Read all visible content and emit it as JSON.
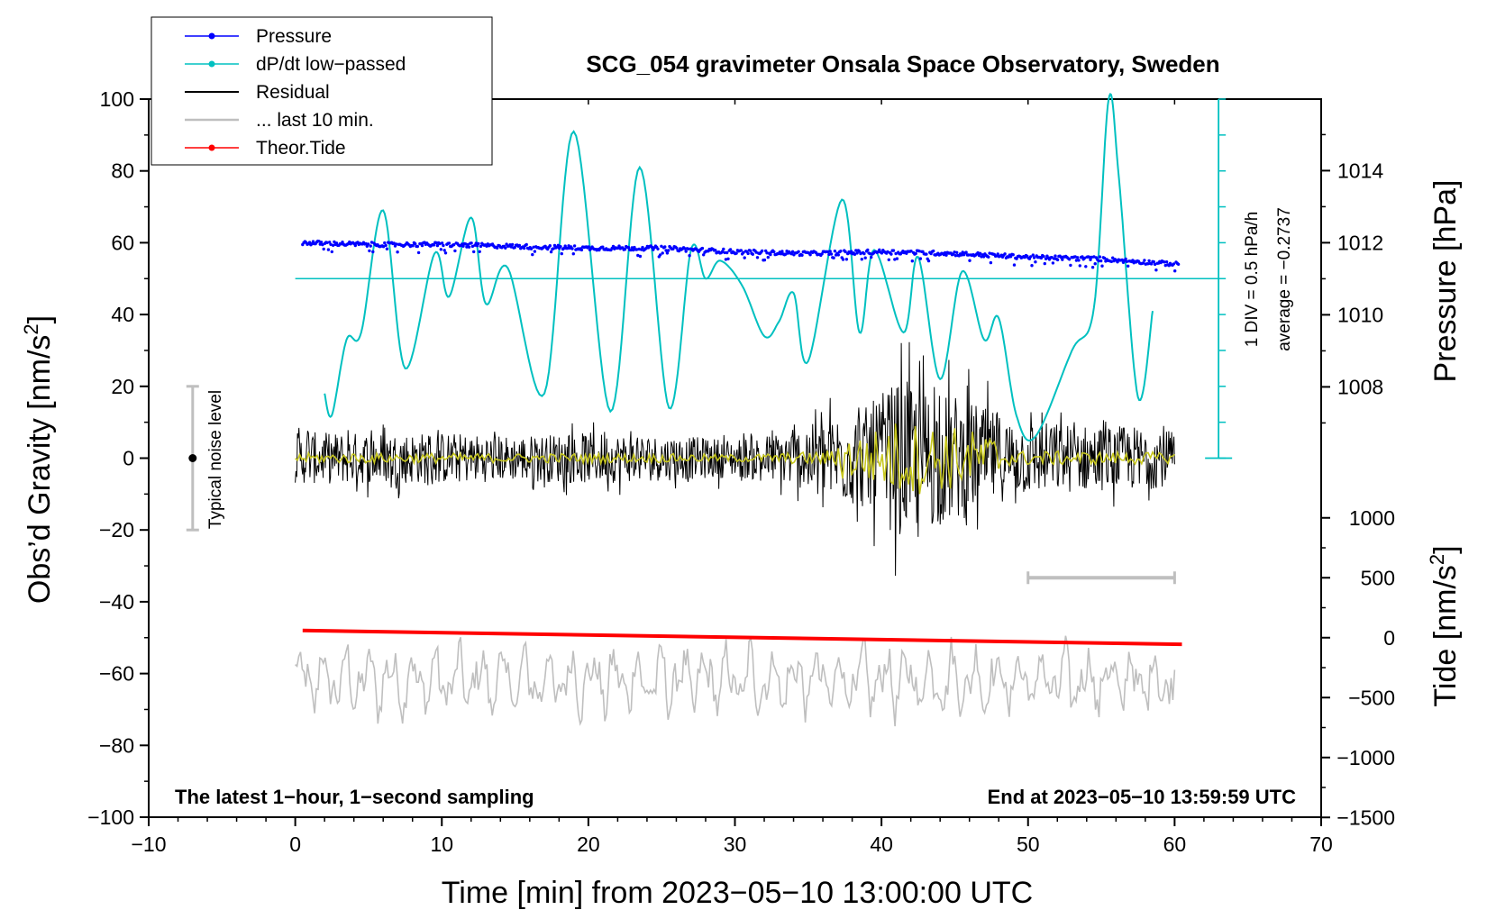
{
  "chart_data": {
    "type": "line",
    "title": "SCG_054 gravimeter Onsala Space Observatory, Sweden",
    "xlabel": "Time [min] from 2023−05−10 13:00:00 UTC",
    "ylabel": "Obs’d Gravity [nm/s",
    "ylabel_sup": "2",
    "ylabel_close": "]",
    "y2label": "Pressure [hPa]",
    "y3label": "Tide [nm/s",
    "y3label_sup": "2",
    "y3label_close": "]",
    "xlim": [
      -10,
      70
    ],
    "ylim": [
      -100,
      100
    ],
    "pressure_lim": [
      1006,
      1016
    ],
    "tide_lim": [
      -1500,
      1000
    ],
    "x_ticks": [
      "−10",
      "0",
      "10",
      "20",
      "30",
      "40",
      "50",
      "60",
      "70"
    ],
    "y_ticks": [
      "−100",
      "−80",
      "−60",
      "−40",
      "−20",
      "0",
      "20",
      "40",
      "60",
      "80",
      "100"
    ],
    "pressure_ticks": [
      "1008",
      "1010",
      "1012",
      "1014"
    ],
    "tide_ticks": [
      "−1500",
      "−1000",
      "−500",
      "0",
      "500",
      "1000"
    ],
    "legend": [
      {
        "label": "Pressure",
        "color": "#0000ff",
        "marker": true
      },
      {
        "label": "dP/dt low−passed",
        "color": "#00c0c0",
        "marker": true
      },
      {
        "label": "Residual",
        "color": "#000000",
        "marker": false
      },
      {
        "label": "... last 10 min.",
        "color": "#bfbfbf",
        "marker": false
      },
      {
        "label": "Theor.Tide",
        "color": "#ff0000",
        "marker": true
      }
    ],
    "annotations": {
      "bottom_left": "The latest 1−hour, 1−second sampling",
      "bottom_right": "End at 2023−05−10 13:59:59 UTC",
      "noise": "Typical noise level",
      "dpdt_scale": "1 DIV = 0.5 hPa/h",
      "dpdt_average": "average = −0.2737"
    },
    "noise_bar": {
      "x": -7,
      "center": 0,
      "low": -20,
      "high": 20
    },
    "last10_bar": {
      "x_start": 50,
      "x_end": 60,
      "tide": 500
    },
    "dpdt_baseline_gravity": 50,
    "series": [
      {
        "name": "Pressure",
        "unit": "hPa",
        "color": "#0000ff",
        "x": [
          0.5,
          5,
          10,
          15,
          20,
          25,
          30,
          35,
          40,
          45,
          50,
          55,
          60.3
        ],
        "values": [
          1012.0,
          1011.95,
          1011.95,
          1011.9,
          1011.85,
          1011.85,
          1011.75,
          1011.7,
          1011.75,
          1011.7,
          1011.6,
          1011.55,
          1011.4
        ]
      },
      {
        "name": "dP/dt low−passed",
        "unit": "nm/s2 (plotted)",
        "color": "#00c0c0",
        "x": [
          2,
          2.5,
          3.5,
          4.5,
          6,
          7.5,
          9.5,
          10.5,
          12,
          13,
          14.5,
          17,
          19,
          21.5,
          23.5,
          25.5,
          27,
          28,
          29,
          30.5,
          32,
          33,
          34,
          35,
          37.3,
          38.5,
          39.5,
          41.5,
          42.5,
          44,
          45.5,
          47,
          48,
          49.2,
          50.5,
          53,
          54.5,
          55.5,
          56.2,
          57.5,
          58.5
        ],
        "values": [
          18,
          12,
          33,
          35,
          69,
          25,
          57,
          45,
          67,
          43,
          53,
          18,
          91,
          13,
          81,
          14,
          58,
          50,
          55,
          48,
          34,
          38,
          46,
          27,
          72,
          35,
          58,
          35,
          56,
          22,
          52,
          33,
          39,
          12,
          6,
          30,
          42,
          100,
          78,
          17,
          41
        ]
      },
      {
        "name": "Residual",
        "unit": "nm/s2",
        "color": "#000000",
        "envelope_x": [
          0,
          5,
          10,
          15,
          20,
          25,
          30,
          33,
          35,
          37,
          39,
          41,
          43,
          45,
          47,
          49,
          52,
          55,
          58,
          60
        ],
        "envelope_amp": [
          8,
          8,
          8,
          7,
          8,
          7,
          6,
          8,
          10,
          14,
          16,
          24,
          22,
          20,
          16,
          12,
          11,
          10,
          10,
          8
        ]
      },
      {
        "name": "... last 10 min.",
        "unit": "nm/s2 (offset)",
        "color": "#bfbfbf",
        "center": -62,
        "amplitude": 10
      },
      {
        "name": "Theor.Tide",
        "unit": "nm/s2",
        "color": "#ff0000",
        "x": [
          0.5,
          60.5
        ],
        "values": [
          60,
          -55
        ]
      }
    ]
  }
}
